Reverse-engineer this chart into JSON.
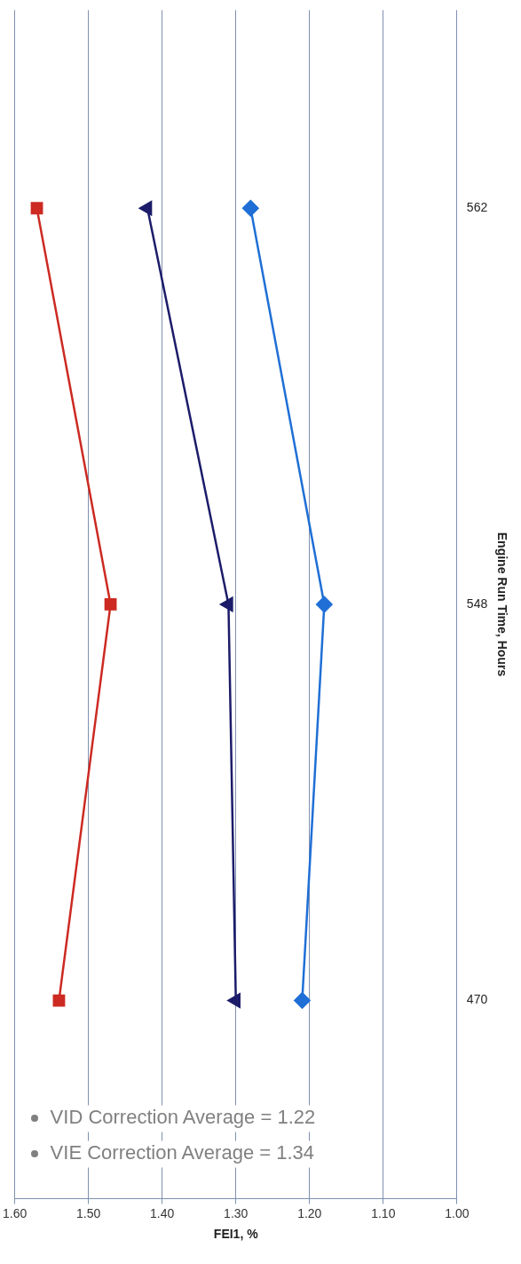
{
  "chart_data": {
    "type": "line",
    "orientation": "horizontal",
    "categories": [
      "562",
      "548",
      "470"
    ],
    "series": [
      {
        "color": "#cc2a22",
        "marker": "square",
        "values": [
          1.57,
          1.47,
          1.54
        ]
      },
      {
        "color": "#1c1c6a",
        "marker": "triangle",
        "values": [
          1.42,
          1.31,
          1.3
        ]
      },
      {
        "color": "#1f6fd6",
        "marker": "diamond",
        "values": [
          1.28,
          1.18,
          1.21
        ]
      }
    ],
    "xlim": [
      1.6,
      1.0
    ],
    "xticks": [
      {
        "value": 1.6,
        "label": "1.60"
      },
      {
        "value": 1.5,
        "label": "1.50"
      },
      {
        "value": 1.4,
        "label": "1.40"
      },
      {
        "value": 1.3,
        "label": "1.30"
      },
      {
        "value": 1.2,
        "label": "1.20"
      },
      {
        "value": 1.1,
        "label": "1.10"
      },
      {
        "value": 1.0,
        "label": "1.00"
      }
    ],
    "xlabel": "FEI1, %",
    "ylabel": "Engine Run Time, Hours",
    "grid": "x",
    "legend": false,
    "annotations": [
      "VID Correction Average = 1.22",
      "VIE Correction Average = 1.34"
    ]
  }
}
